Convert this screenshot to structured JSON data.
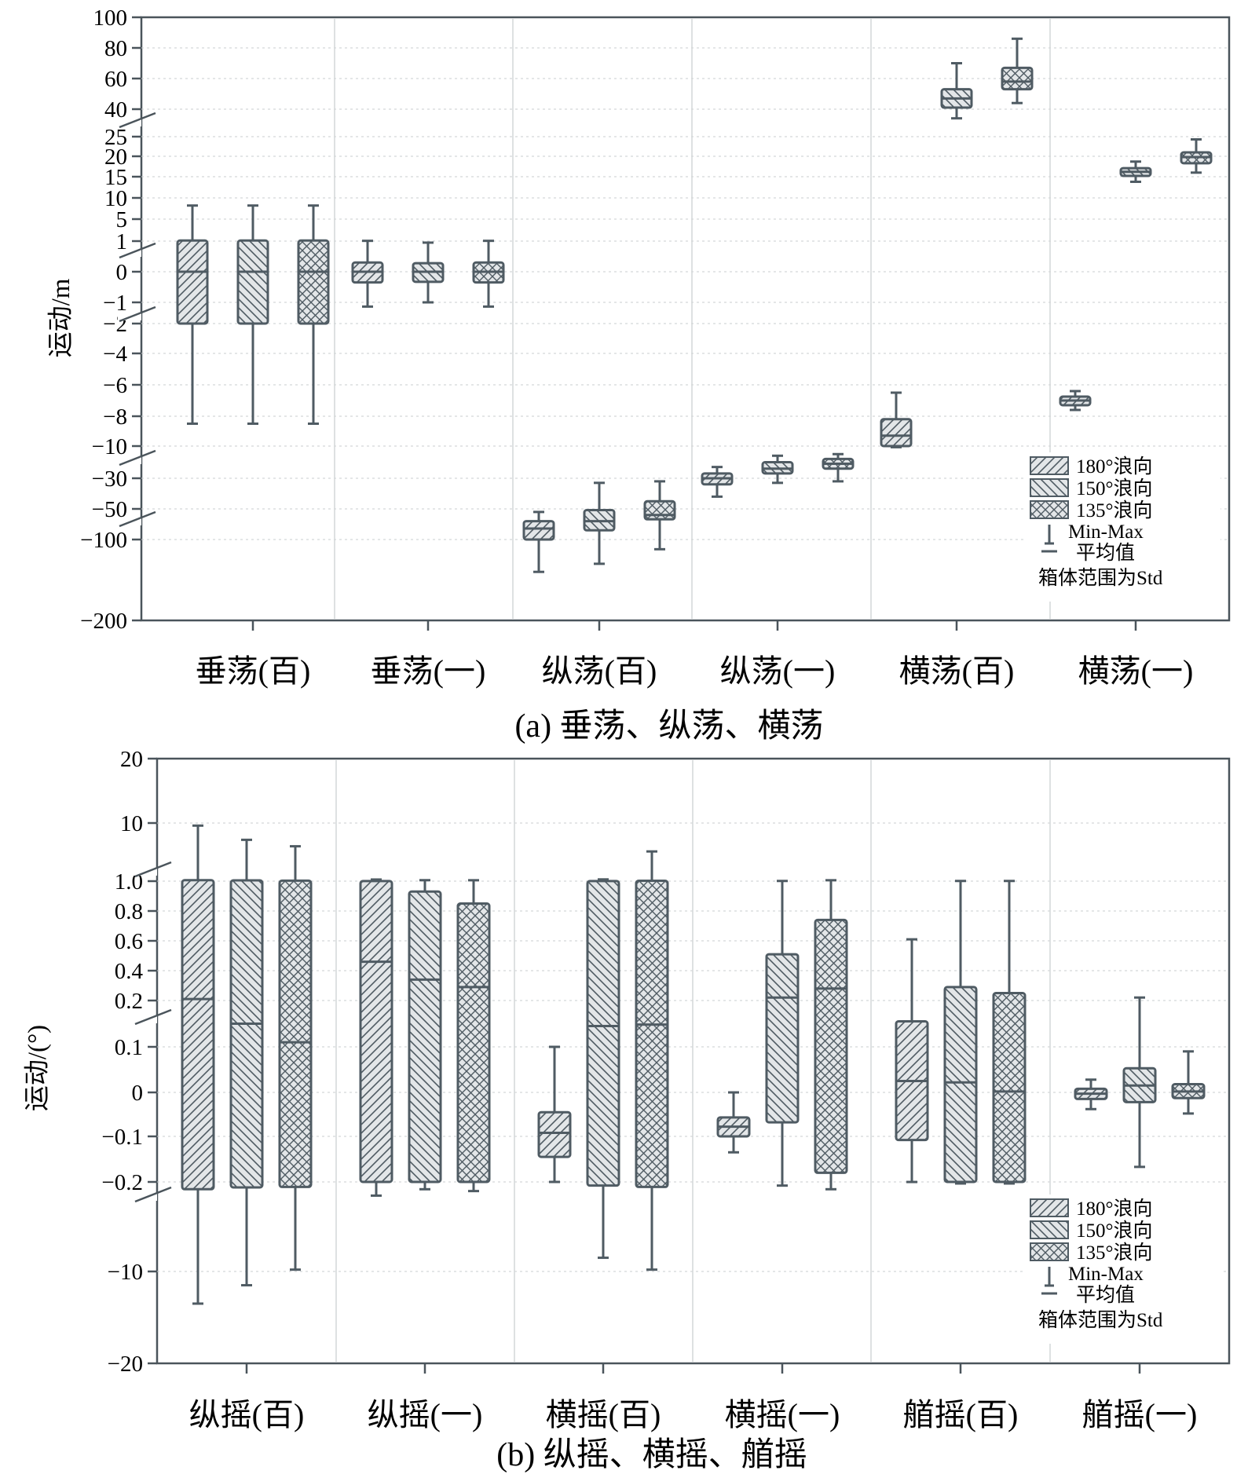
{
  "legend": {
    "series": [
      "180°浪向",
      "150°浪向",
      "135°浪向"
    ],
    "min_max": "Min-Max",
    "mean": "平均值",
    "note": "箱体范围为Std"
  },
  "chart_data": [
    {
      "type": "box",
      "caption": "(a) 垂荡、纵荡、横荡",
      "ylabel": "运动/m",
      "yaxis": "broken, piecewise-linear",
      "ytick_labels": [
        "100",
        "80",
        "60",
        "40",
        "25",
        "20",
        "15",
        "10",
        "5",
        "1",
        "0",
        "-1",
        "-2",
        "-4",
        "-6",
        "-8",
        "-10",
        "-30",
        "-50",
        "-100",
        "-200"
      ],
      "categories": [
        "垂荡(百)",
        "垂荡(一)",
        "纵荡(百)",
        "纵荡(一)",
        "横荡(百)",
        "横荡(一)"
      ],
      "series_names": [
        "180°浪向",
        "150°浪向",
        "135°浪向"
      ],
      "boxes": [
        [
          {
            "min": -8.5,
            "q1": -2,
            "mean": 0,
            "q3": 1.1,
            "max": 8.2
          },
          {
            "min": -8.5,
            "q1": -2,
            "mean": 0,
            "q3": 1.1,
            "max": 8.2
          },
          {
            "min": -8.5,
            "q1": -2,
            "mean": 0,
            "q3": 1.1,
            "max": 8.2
          }
        ],
        [
          {
            "min": -1.2,
            "q1": -0.35,
            "mean": 0,
            "q3": 0.3,
            "max": 1.05
          },
          {
            "min": -1.0,
            "q1": -0.33,
            "mean": 0,
            "q3": 0.28,
            "max": 0.95
          },
          {
            "min": -1.2,
            "q1": -0.35,
            "mean": 0,
            "q3": 0.3,
            "max": 1.05
          }
        ],
        [
          {
            "min": -140,
            "q1": -100,
            "mean": -82,
            "q3": -70,
            "max": -55
          },
          {
            "min": -130,
            "q1": -85,
            "mean": -70,
            "q3": -52,
            "max": -33
          },
          {
            "min": -112,
            "q1": -67,
            "mean": -60,
            "q3": -45,
            "max": -32
          }
        ],
        [
          {
            "min": -42,
            "q1": -34,
            "mean": -30,
            "q3": -27,
            "max": -23
          },
          {
            "min": -33,
            "q1": -27,
            "mean": -24,
            "q3": -20,
            "max": -16
          },
          {
            "min": -32,
            "q1": -24,
            "mean": -21,
            "q3": -18,
            "max": -15
          }
        ],
        [
          {
            "min": -10.7,
            "q1": -10,
            "mean": -9.3,
            "q3": -8.2,
            "max": -6.5
          },
          {
            "min": 35,
            "q1": 41,
            "mean": 47,
            "q3": 53,
            "max": 70
          },
          {
            "min": 44,
            "q1": 53,
            "mean": 58,
            "q3": 67,
            "max": 86
          }
        ],
        [
          {
            "min": -7.6,
            "q1": -7.3,
            "mean": -7.0,
            "q3": -6.75,
            "max": -6.4
          },
          {
            "min": 13.8,
            "q1": 15.2,
            "mean": 16.2,
            "q3": 17.1,
            "max": 18.7
          },
          {
            "min": 16,
            "q1": 18.3,
            "mean": 19.8,
            "q3": 21,
            "max": 24.3
          }
        ]
      ]
    },
    {
      "type": "box",
      "caption": "(b) 纵摇、横摇、艏摇",
      "ylabel": "运动/(°)",
      "yaxis": "broken, piecewise-linear",
      "ytick_labels": [
        "20",
        "10",
        "1.0",
        "0.8",
        "0.6",
        "0.4",
        "0.2",
        "0.1",
        "0",
        "-0.1",
        "-0.2",
        "-10",
        "-20"
      ],
      "categories": [
        "纵摇(百)",
        "纵摇(一)",
        "横摇(百)",
        "横摇(一)",
        "艏摇(百)",
        "艏摇(一)"
      ],
      "series_names": [
        "180°浪向",
        "150°浪向",
        "135°浪向"
      ],
      "boxes": [
        [
          {
            "min": -13.5,
            "q1": -1.0,
            "mean": 0.21,
            "q3": 1.15,
            "max": 9.6
          },
          {
            "min": -11.5,
            "q1": -0.8,
            "mean": 0.15,
            "q3": 1.12,
            "max": 7.4
          },
          {
            "min": -9.8,
            "q1": -0.75,
            "mean": 0.11,
            "q3": 1.08,
            "max": 6.4
          }
        ],
        [
          {
            "min": -1.7,
            "q1": -0.2,
            "mean": 0.46,
            "q3": 1.02,
            "max": 1.25
          },
          {
            "min": -1.0,
            "q1": -0.2,
            "mean": 0.34,
            "q3": 0.93,
            "max": 1.15
          },
          {
            "min": -1.2,
            "q1": -0.2,
            "mean": 0.29,
            "q3": 0.85,
            "max": 1.14
          }
        ],
        [
          {
            "min": -0.2,
            "q1": -0.145,
            "mean": -0.092,
            "q3": -0.045,
            "max": 0.1
          },
          {
            "min": -8.5,
            "q1": -0.6,
            "mean": 0.145,
            "q3": 1.02,
            "max": 1.27
          },
          {
            "min": -9.8,
            "q1": -0.75,
            "mean": 0.148,
            "q3": 1.06,
            "max": 5.6
          }
        ],
        [
          {
            "min": -0.135,
            "q1": -0.1,
            "mean": -0.078,
            "q3": -0.057,
            "max": 0.0
          },
          {
            "min": -0.6,
            "q1": -0.068,
            "mean": 0.22,
            "q3": 0.51,
            "max": 1.03
          },
          {
            "min": -1.0,
            "q1": -0.18,
            "mean": 0.28,
            "q3": 0.74,
            "max": 1.14
          }
        ],
        [
          {
            "min": -0.205,
            "q1": -0.108,
            "mean": 0.025,
            "q3": 0.155,
            "max": 0.61
          },
          {
            "min": -0.37,
            "q1": -0.2,
            "mean": 0.022,
            "q3": 0.29,
            "max": 1.03
          },
          {
            "min": -0.37,
            "q1": -0.2,
            "mean": 0.002,
            "q3": 0.25,
            "max": 1.03
          }
        ],
        [
          {
            "min": -0.038,
            "q1": -0.015,
            "mean": -0.003,
            "q3": 0.008,
            "max": 0.028
          },
          {
            "min": -0.167,
            "q1": -0.022,
            "mean": 0.015,
            "q3": 0.053,
            "max": 0.22
          },
          {
            "min": -0.048,
            "q1": -0.013,
            "mean": 0.002,
            "q3": 0.018,
            "max": 0.09
          }
        ]
      ]
    }
  ]
}
